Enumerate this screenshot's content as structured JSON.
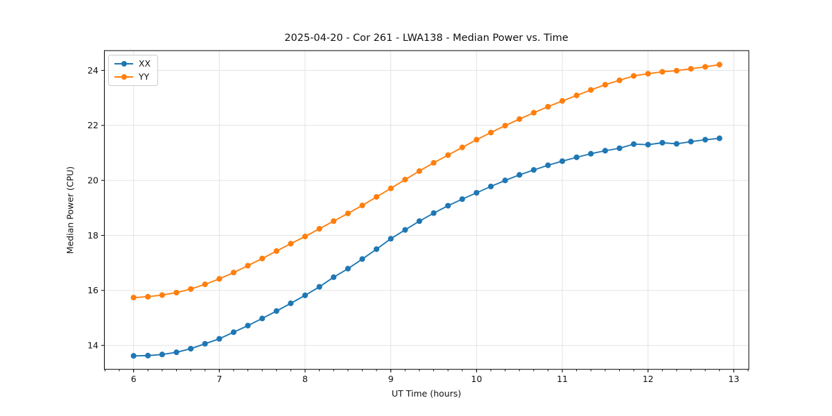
{
  "chart_data": {
    "type": "line",
    "title": "2025-04-20 - Cor 261 - LWA138 - Median Power vs. Time",
    "xlabel": "UT Time (hours)",
    "ylabel": "Median Power (CPU)",
    "xlim": [
      5.659,
      13.175
    ],
    "ylim": [
      13.13,
      24.72
    ],
    "xticks": [
      6,
      7,
      8,
      9,
      10,
      11,
      12,
      13
    ],
    "yticks": [
      14,
      16,
      18,
      20,
      22,
      24
    ],
    "x_minor_step": 0.1666667,
    "grid": true,
    "grid_color": "#e3e3e3",
    "spine_color": "#000000",
    "legend_position": "upper-left",
    "x": [
      6.0,
      6.167,
      6.333,
      6.5,
      6.667,
      6.833,
      7.0,
      7.167,
      7.333,
      7.5,
      7.667,
      7.833,
      8.0,
      8.167,
      8.333,
      8.5,
      8.667,
      8.833,
      9.0,
      9.167,
      9.333,
      9.5,
      9.667,
      9.833,
      10.0,
      10.167,
      10.333,
      10.5,
      10.667,
      10.833,
      11.0,
      11.167,
      11.333,
      11.5,
      11.667,
      11.833,
      12.0,
      12.167,
      12.333,
      12.5,
      12.667,
      12.833
    ],
    "series": [
      {
        "name": "XX",
        "color": "#1f77b4",
        "values": [
          13.62,
          13.63,
          13.67,
          13.75,
          13.88,
          14.06,
          14.24,
          14.48,
          14.72,
          14.98,
          15.25,
          15.53,
          15.82,
          16.13,
          16.48,
          16.79,
          17.14,
          17.5,
          17.88,
          18.2,
          18.52,
          18.81,
          19.08,
          19.32,
          19.55,
          19.78,
          20.0,
          20.2,
          20.38,
          20.55,
          20.7,
          20.84,
          20.97,
          21.08,
          21.17,
          21.32,
          21.3,
          21.37,
          21.33,
          21.41,
          21.48,
          21.53
        ]
      },
      {
        "name": "YY",
        "color": "#ff7f0e",
        "values": [
          15.74,
          15.77,
          15.83,
          15.92,
          16.05,
          16.22,
          16.42,
          16.65,
          16.9,
          17.16,
          17.43,
          17.7,
          17.96,
          18.24,
          18.52,
          18.8,
          19.09,
          19.4,
          19.71,
          20.03,
          20.34,
          20.64,
          20.92,
          21.2,
          21.48,
          21.74,
          21.99,
          22.23,
          22.46,
          22.68,
          22.89,
          23.09,
          23.29,
          23.48,
          23.64,
          23.8,
          23.88,
          23.95,
          23.99,
          24.06,
          24.13,
          24.21
        ]
      }
    ]
  }
}
